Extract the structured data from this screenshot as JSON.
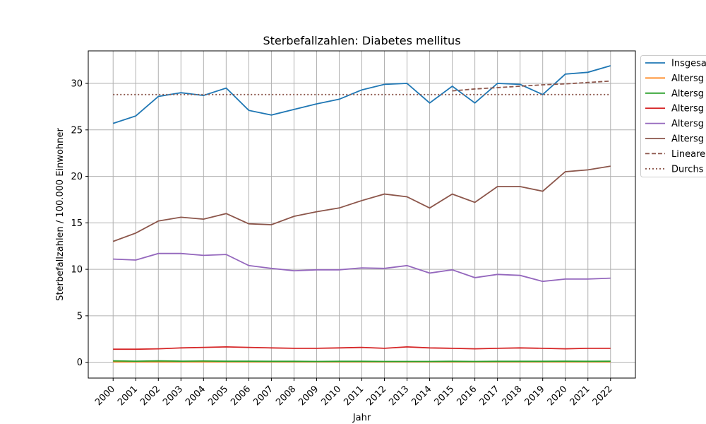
{
  "chart_data": {
    "type": "line",
    "title": "Sterbefallzahlen: Diabetes mellitus",
    "xlabel": "Jahr",
    "ylabel": "Sterbefallzahlen / 100.000 Einwohner",
    "ylim": [
      -1.7,
      33.5
    ],
    "yticks": [
      0,
      5,
      10,
      15,
      20,
      25,
      30
    ],
    "grid": true,
    "legend_position": "right (partially clipped)",
    "x": [
      2000,
      2001,
      2002,
      2003,
      2004,
      2005,
      2006,
      2007,
      2008,
      2009,
      2010,
      2011,
      2012,
      2013,
      2014,
      2015,
      2016,
      2017,
      2018,
      2019,
      2020,
      2021,
      2022
    ],
    "series": [
      {
        "name": "Insgesa",
        "color": "#1f77b4",
        "style": "solid",
        "values": [
          25.7,
          26.5,
          28.6,
          29.0,
          28.7,
          29.5,
          27.1,
          26.6,
          27.2,
          27.8,
          28.3,
          29.3,
          29.9,
          30.0,
          27.9,
          29.7,
          27.9,
          30.0,
          29.9,
          28.8,
          31.0,
          31.2,
          31.9
        ]
      },
      {
        "name": "Altersg",
        "color": "#ff7f0e",
        "style": "solid",
        "values": [
          0.05,
          0.05,
          0.05,
          0.05,
          0.05,
          0.05,
          0.05,
          0.05,
          0.05,
          0.05,
          0.05,
          0.05,
          0.05,
          0.05,
          0.05,
          0.05,
          0.05,
          0.05,
          0.05,
          0.05,
          0.05,
          0.05,
          0.05
        ]
      },
      {
        "name": "Altersg",
        "color": "#2ca02c",
        "style": "solid",
        "values": [
          0.15,
          0.12,
          0.15,
          0.12,
          0.13,
          0.11,
          0.11,
          0.1,
          0.1,
          0.09,
          0.1,
          0.1,
          0.09,
          0.09,
          0.09,
          0.1,
          0.09,
          0.1,
          0.1,
          0.1,
          0.11,
          0.1,
          0.11
        ]
      },
      {
        "name": "Altersg",
        "color": "#d62728",
        "style": "solid",
        "values": [
          1.4,
          1.4,
          1.45,
          1.55,
          1.6,
          1.65,
          1.6,
          1.55,
          1.5,
          1.5,
          1.55,
          1.6,
          1.5,
          1.65,
          1.55,
          1.5,
          1.45,
          1.5,
          1.55,
          1.5,
          1.45,
          1.5,
          1.5
        ]
      },
      {
        "name": "Altersg",
        "color": "#9467bd",
        "style": "solid",
        "values": [
          11.1,
          11.0,
          11.7,
          11.7,
          11.5,
          11.6,
          10.4,
          10.1,
          9.85,
          9.95,
          9.95,
          10.15,
          10.1,
          10.4,
          9.6,
          9.95,
          9.1,
          9.45,
          9.35,
          8.7,
          8.95,
          8.95,
          9.05
        ]
      },
      {
        "name": "Altersg",
        "color": "#8c564b",
        "style": "solid",
        "values": [
          13.0,
          13.9,
          15.2,
          15.6,
          15.4,
          16.0,
          14.9,
          14.8,
          15.7,
          16.2,
          16.6,
          17.4,
          18.1,
          17.8,
          16.6,
          18.1,
          17.2,
          18.9,
          18.9,
          18.4,
          20.5,
          20.7,
          21.1
        ]
      },
      {
        "name": "Lineare",
        "color": "#8c564b",
        "style": "dashed",
        "x": [
          2015,
          2016,
          2017,
          2018,
          2019,
          2020,
          2021,
          2022
        ],
        "values": [
          29.2,
          29.4,
          29.55,
          29.7,
          29.85,
          29.95,
          30.1,
          30.25
        ]
      },
      {
        "name": "Durchs",
        "color": "#8c564b",
        "style": "dotted",
        "values": [
          28.8,
          28.8,
          28.8,
          28.8,
          28.8,
          28.8,
          28.8,
          28.8,
          28.8,
          28.8,
          28.8,
          28.8,
          28.8,
          28.8,
          28.8,
          28.8,
          28.8,
          28.8,
          28.8,
          28.8,
          28.8,
          28.8,
          28.8
        ]
      }
    ]
  }
}
